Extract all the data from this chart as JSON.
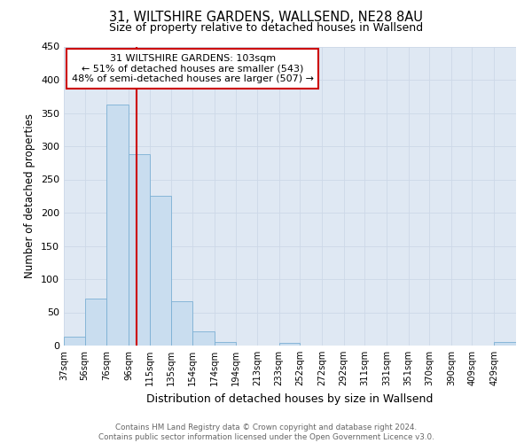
{
  "title": "31, WILTSHIRE GARDENS, WALLSEND, NE28 8AU",
  "subtitle": "Size of property relative to detached houses in Wallsend",
  "xlabel": "Distribution of detached houses by size in Wallsend",
  "ylabel": "Number of detached properties",
  "footnote1": "Contains HM Land Registry data © Crown copyright and database right 2024.",
  "footnote2": "Contains public sector information licensed under the Open Government Licence v3.0.",
  "bin_labels": [
    "37sqm",
    "56sqm",
    "76sqm",
    "96sqm",
    "115sqm",
    "135sqm",
    "154sqm",
    "174sqm",
    "194sqm",
    "213sqm",
    "233sqm",
    "252sqm",
    "272sqm",
    "292sqm",
    "311sqm",
    "331sqm",
    "351sqm",
    "370sqm",
    "390sqm",
    "409sqm",
    "429sqm"
  ],
  "bar_values": [
    14,
    71,
    363,
    288,
    225,
    67,
    21,
    6,
    0,
    0,
    4,
    0,
    0,
    0,
    0,
    0,
    0,
    0,
    0,
    0,
    5
  ],
  "bar_color": "#c9ddef",
  "bar_edgecolor": "#7bafd4",
  "bin_edges": [
    37,
    56,
    76,
    96,
    115,
    135,
    154,
    174,
    194,
    213,
    233,
    252,
    272,
    292,
    311,
    331,
    351,
    370,
    390,
    409,
    429,
    449
  ],
  "property_value": 103,
  "red_line_color": "#cc0000",
  "ylim": [
    0,
    450
  ],
  "yticks": [
    0,
    50,
    100,
    150,
    200,
    250,
    300,
    350,
    400,
    450
  ],
  "annotation_title": "31 WILTSHIRE GARDENS: 103sqm",
  "annotation_line1": "← 51% of detached houses are smaller (543)",
  "annotation_line2": "48% of semi-detached houses are larger (507) →",
  "annotation_box_color": "#ffffff",
  "annotation_box_edgecolor": "#cc0000",
  "grid_color": "#cdd8e8",
  "background_color": "#dfe8f3"
}
